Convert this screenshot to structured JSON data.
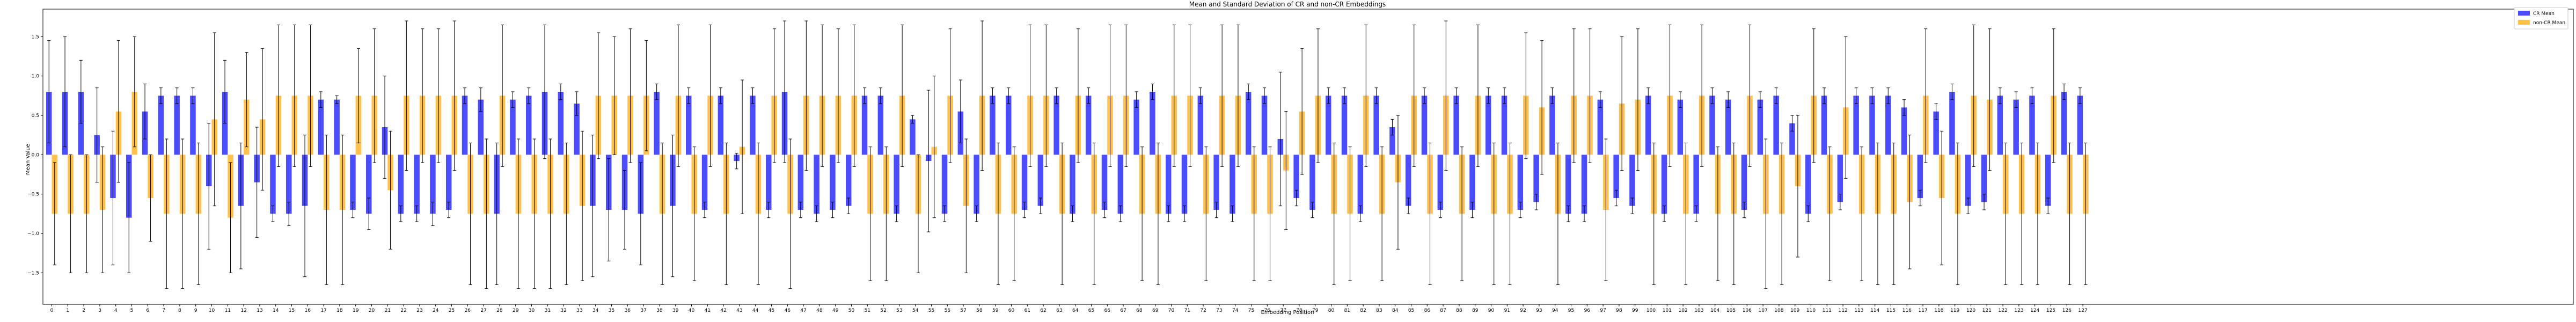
{
  "chart_data": {
    "type": "bar",
    "title": "Mean and Standard Deviation of CR and non-CR Embeddings",
    "xlabel": "Embedding Position",
    "ylabel": "Mean Value",
    "ylim": [
      -1.9,
      1.85
    ],
    "yticks": [
      -1.5,
      -1.0,
      -0.5,
      0.0,
      0.5,
      1.0,
      1.5
    ],
    "ytick_labels": [
      "−1.5",
      "−1.0",
      "−0.5",
      "0.0",
      "0.5",
      "1.0",
      "1.5"
    ],
    "grid": false,
    "legend_position": "top-right",
    "error_bars": "standard deviation",
    "categories": [
      "0",
      "1",
      "2",
      "3",
      "4",
      "5",
      "6",
      "7",
      "8",
      "9",
      "10",
      "11",
      "12",
      "13",
      "14",
      "15",
      "16",
      "17",
      "18",
      "19",
      "20",
      "21",
      "22",
      "23",
      "24",
      "25",
      "26",
      "27",
      "28",
      "29",
      "30",
      "31",
      "32",
      "33",
      "34",
      "35",
      "36",
      "37",
      "38",
      "39",
      "40",
      "41",
      "42",
      "43",
      "44",
      "45",
      "46",
      "47",
      "48",
      "49",
      "50",
      "51",
      "52",
      "53",
      "54",
      "55",
      "56",
      "57",
      "58",
      "59",
      "60",
      "61",
      "62",
      "63",
      "64",
      "65",
      "66",
      "67",
      "68",
      "69",
      "70",
      "71",
      "72",
      "73",
      "74",
      "75",
      "76",
      "77",
      "78",
      "79",
      "80",
      "81",
      "82",
      "83",
      "84",
      "85",
      "86",
      "87",
      "88",
      "89",
      "90",
      "91",
      "92",
      "93",
      "94",
      "95",
      "96",
      "97",
      "98",
      "99",
      "100",
      "101",
      "102",
      "103",
      "104",
      "105",
      "106",
      "107",
      "108",
      "109",
      "110",
      "111",
      "112",
      "113",
      "114",
      "115",
      "116",
      "117",
      "118",
      "119",
      "120",
      "121",
      "122",
      "123",
      "124",
      "125",
      "126",
      "127"
    ],
    "series": [
      {
        "name": "CR Mean",
        "color": "#0000ff",
        "values": [
          0.8,
          0.8,
          0.8,
          0.25,
          -0.55,
          -0.8,
          0.55,
          0.75,
          0.75,
          0.75,
          -0.4,
          0.8,
          -0.65,
          -0.35,
          -0.75,
          -0.75,
          -0.65,
          0.7,
          0.7,
          -0.7,
          -0.75,
          0.35,
          -0.75,
          -0.75,
          -0.75,
          -0.7,
          0.75,
          0.7,
          -0.75,
          0.7,
          0.75,
          0.8,
          0.8,
          0.65,
          -0.65,
          -0.7,
          -0.7,
          -0.75,
          0.8,
          -0.65,
          0.75,
          -0.7,
          0.75,
          -0.08,
          0.75,
          -0.7,
          0.8,
          -0.7,
          -0.75,
          -0.7,
          -0.65,
          0.75,
          0.75,
          -0.75,
          0.45,
          -0.08,
          -0.75,
          0.55,
          -0.75,
          0.75,
          0.75,
          -0.7,
          -0.65,
          0.75,
          -0.75,
          0.75,
          -0.7,
          -0.75,
          0.7,
          0.8,
          -0.75,
          -0.75,
          0.75,
          -0.7,
          -0.75,
          0.8,
          0.75,
          0.2,
          -0.55,
          -0.7,
          0.75,
          0.75,
          -0.75,
          0.75,
          0.35,
          -0.65,
          0.75,
          -0.7,
          0.75,
          -0.7,
          0.75,
          0.75,
          -0.7,
          -0.6,
          0.75,
          -0.75,
          -0.75,
          0.7,
          -0.55,
          -0.65,
          0.75,
          -0.75,
          0.7,
          -0.75,
          0.75,
          0.7,
          -0.7,
          0.7,
          0.75,
          0.4,
          -0.75,
          0.75,
          -0.6,
          0.75,
          0.75,
          0.75,
          0.6,
          -0.55,
          0.55,
          0.8,
          -0.65,
          -0.6,
          0.75,
          0.7,
          0.75,
          -0.65,
          0.8,
          0.75
        ],
        "std": [
          0.65,
          0.7,
          0.4,
          0.6,
          0.85,
          0.7,
          0.35,
          0.1,
          0.1,
          0.1,
          0.8,
          0.4,
          0.8,
          0.7,
          0.1,
          0.15,
          0.9,
          0.1,
          0.05,
          0.1,
          0.2,
          0.65,
          0.1,
          0.1,
          0.15,
          0.1,
          0.1,
          0.15,
          0.9,
          0.1,
          0.1,
          0.85,
          0.1,
          0.15,
          0.9,
          0.65,
          0.5,
          0.65,
          0.1,
          0.9,
          0.1,
          0.1,
          0.1,
          0.1,
          0.1,
          0.1,
          0.9,
          0.1,
          0.1,
          0.1,
          0.1,
          0.1,
          0.1,
          0.1,
          0.05,
          0.9,
          0.1,
          0.4,
          0.1,
          0.1,
          0.1,
          0.1,
          0.1,
          0.1,
          0.1,
          0.1,
          0.1,
          0.1,
          0.1,
          0.1,
          0.1,
          0.1,
          0.1,
          0.1,
          0.1,
          0.1,
          0.1,
          0.85,
          0.1,
          0.1,
          0.1,
          0.1,
          0.1,
          0.1,
          0.1,
          0.1,
          0.1,
          0.1,
          0.1,
          0.1,
          0.1,
          0.1,
          0.1,
          0.1,
          0.1,
          0.1,
          0.1,
          0.1,
          0.1,
          0.1,
          0.1,
          0.1,
          0.1,
          0.1,
          0.1,
          0.1,
          0.1,
          0.1,
          0.1,
          0.1,
          0.1,
          0.1,
          0.1,
          0.1,
          0.1,
          0.1,
          0.1,
          0.1,
          0.1,
          0.1,
          0.1,
          0.1,
          0.1,
          0.1,
          0.1,
          0.1,
          0.1,
          0.1
        ]
      },
      {
        "name": "non-CR Mean",
        "color": "#ffa500",
        "values": [
          -0.75,
          -0.75,
          -0.75,
          -0.7,
          0.55,
          0.8,
          -0.55,
          -0.75,
          -0.75,
          -0.75,
          0.45,
          -0.8,
          0.7,
          0.45,
          0.75,
          0.75,
          0.75,
          -0.7,
          -0.7,
          0.75,
          0.75,
          -0.45,
          0.75,
          0.75,
          0.75,
          0.75,
          -0.75,
          -0.75,
          0.75,
          -0.75,
          -0.75,
          -0.75,
          -0.75,
          -0.65,
          0.75,
          0.75,
          0.75,
          0.75,
          -0.75,
          0.75,
          -0.75,
          0.75,
          -0.75,
          0.1,
          -0.75,
          0.75,
          -0.75,
          0.75,
          0.75,
          0.75,
          0.75,
          -0.75,
          -0.75,
          0.75,
          -0.75,
          0.1,
          0.75,
          -0.65,
          0.75,
          -0.75,
          -0.75,
          0.75,
          0.75,
          -0.75,
          0.75,
          -0.75,
          0.75,
          0.75,
          -0.75,
          -0.75,
          0.75,
          0.75,
          -0.75,
          0.75,
          0.75,
          -0.75,
          -0.75,
          -0.2,
          0.55,
          0.75,
          -0.75,
          -0.75,
          0.75,
          -0.75,
          -0.35,
          0.75,
          -0.75,
          0.75,
          -0.75,
          0.75,
          -0.75,
          -0.75,
          0.75,
          0.6,
          -0.75,
          0.75,
          0.75,
          -0.7,
          0.65,
          0.7,
          -0.75,
          0.75,
          -0.75,
          0.75,
          -0.75,
          -0.75,
          0.75,
          -0.75,
          -0.75,
          -0.4,
          0.75,
          -0.75,
          0.6,
          -0.75,
          -0.75,
          -0.75,
          -0.6,
          0.75,
          -0.55,
          -0.75,
          0.75,
          0.7,
          -0.75,
          -0.75,
          -0.75,
          0.75,
          -0.75,
          -0.75
        ],
        "std": [
          0.65,
          0.75,
          0.75,
          0.8,
          0.9,
          0.7,
          0.55,
          0.95,
          0.95,
          0.9,
          1.1,
          0.7,
          0.6,
          0.9,
          0.9,
          0.9,
          0.9,
          0.95,
          0.95,
          0.6,
          0.85,
          0.75,
          0.95,
          0.85,
          0.85,
          0.95,
          0.9,
          0.95,
          0.9,
          0.95,
          0.95,
          0.95,
          0.9,
          0.95,
          0.8,
          0.75,
          0.85,
          0.7,
          0.9,
          0.9,
          0.85,
          0.9,
          0.9,
          0.85,
          0.9,
          0.85,
          0.95,
          0.95,
          0.9,
          0.85,
          0.9,
          0.85,
          0.85,
          0.9,
          0.75,
          0.9,
          0.85,
          0.85,
          0.95,
          0.9,
          0.85,
          0.9,
          0.9,
          0.9,
          0.85,
          0.9,
          0.9,
          0.9,
          0.85,
          0.9,
          0.9,
          0.9,
          0.85,
          0.9,
          0.9,
          0.85,
          0.85,
          0.75,
          0.8,
          0.85,
          0.9,
          0.85,
          0.9,
          0.85,
          0.85,
          0.9,
          0.9,
          0.95,
          0.85,
          0.9,
          0.9,
          0.9,
          0.8,
          0.85,
          0.9,
          0.85,
          0.85,
          0.9,
          0.85,
          0.9,
          0.9,
          0.9,
          0.9,
          0.9,
          0.85,
          0.9,
          0.9,
          0.95,
          0.9,
          0.9,
          0.85,
          0.85,
          0.9,
          0.85,
          0.9,
          0.9,
          0.85,
          0.85,
          0.85,
          0.9,
          0.9,
          0.9,
          0.9,
          0.9,
          0.9,
          0.85,
          0.9,
          0.9
        ]
      }
    ]
  }
}
